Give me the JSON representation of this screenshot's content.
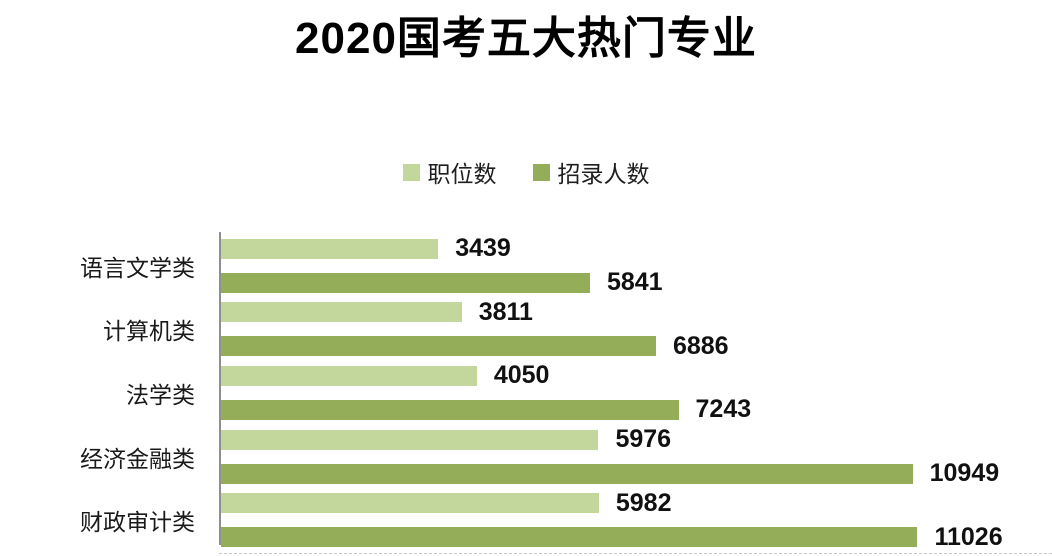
{
  "chart": {
    "title": "2020国考五大热门专业",
    "legend": {
      "positions_label": "职位数",
      "recruits_label": "招录人数"
    },
    "colors": {
      "positions": "#c3d69b",
      "recruits": "#94ad58",
      "axis": "#8f8f8f",
      "text": "#1a1a1a",
      "title": "#000000"
    }
  },
  "chart_data": {
    "type": "bar",
    "orientation": "horizontal",
    "title": "2020国考五大热门专业",
    "categories": [
      "语言文学类",
      "计算机类",
      "法学类",
      "经济金融类",
      "财政审计类"
    ],
    "category_order": "top-to-bottom",
    "series": [
      {
        "name": "职位数",
        "color": "#c3d69b",
        "values": [
          3439,
          3811,
          4050,
          5976,
          5982
        ]
      },
      {
        "name": "招录人数",
        "color": "#94ad58",
        "values": [
          5841,
          6886,
          7243,
          10949,
          11026
        ]
      }
    ],
    "value_labels": true,
    "xlim": [
      0,
      12000
    ],
    "grid": false,
    "legend_position": "top-center"
  }
}
